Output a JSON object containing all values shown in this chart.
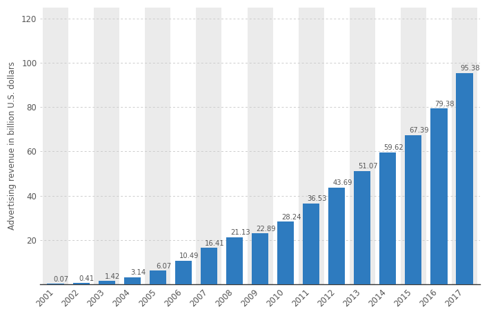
{
  "years": [
    "2001",
    "2002",
    "2003",
    "2004",
    "2005",
    "2006",
    "2007",
    "2008",
    "2009",
    "2010",
    "2011",
    "2012",
    "2013",
    "2014",
    "2015",
    "2016",
    "2017"
  ],
  "values": [
    0.07,
    0.41,
    1.42,
    3.14,
    6.07,
    10.49,
    16.41,
    21.13,
    22.89,
    28.24,
    36.53,
    43.69,
    51.07,
    59.62,
    67.39,
    79.38,
    95.38
  ],
  "bar_color": "#2e7bbf",
  "background_color": "#ffffff",
  "plot_bg_color": "#ffffff",
  "column_band_color": "#ebebeb",
  "ylabel": "Advertising revenue in billion U.S. dollars",
  "ylim": [
    0,
    125
  ],
  "yticks": [
    0,
    20,
    40,
    60,
    80,
    100,
    120
  ],
  "grid_color": "#cccccc",
  "tick_fontsize": 8.5,
  "ylabel_fontsize": 8.5,
  "bar_label_fontsize": 7.2,
  "bar_label_color": "#555555",
  "spine_color": "#333333"
}
